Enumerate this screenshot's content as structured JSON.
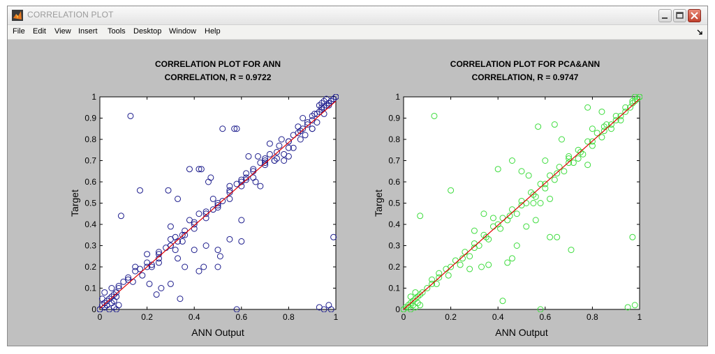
{
  "window": {
    "title": "CORRELATION PLOT",
    "menu": [
      "File",
      "Edit",
      "View",
      "Insert",
      "Tools",
      "Desktop",
      "Window",
      "Help"
    ],
    "controls": [
      "minimize-icon",
      "maximize-icon",
      "close-icon"
    ]
  },
  "chart_data": [
    {
      "type": "scatter",
      "title": "CORRELATION PLOT FOR ANN",
      "subtitle": "CORRELATION, R = 0.9722",
      "xlabel": "ANN Output",
      "ylabel": "Target",
      "xlim": [
        0,
        1
      ],
      "ylim": [
        0,
        1
      ],
      "xticks": [
        "0",
        "0.2",
        "0.4",
        "0.6",
        "0.8",
        "1"
      ],
      "yticks": [
        "0",
        "0.1",
        "0.2",
        "0.3",
        "0.4",
        "0.5",
        "0.6",
        "0.7",
        "0.8",
        "0.9",
        "1"
      ],
      "grid": false,
      "marker_color": "#1c1c8c",
      "series": [
        {
          "marker": "circle",
          "x": [
            0.0,
            0.01,
            0.02,
            0.03,
            0.04,
            0.05,
            0.06,
            0.07,
            0.05,
            0.08,
            0.1,
            0.12,
            0.15,
            0.2,
            0.25,
            0.3,
            0.35,
            0.4,
            0.45,
            0.5,
            0.55,
            0.6,
            0.65,
            0.7,
            0.75,
            0.8,
            0.85,
            0.88,
            0.9,
            0.92,
            0.94,
            0.96,
            0.97,
            0.98,
            0.99,
            1.0,
            0.0,
            0.02,
            0.01,
            0.03,
            0.04,
            0.06,
            0.07,
            0.08,
            0.05,
            0.06,
            0.02,
            0.07,
            0.12,
            0.08,
            0.17,
            0.14,
            0.2,
            0.22,
            0.25,
            0.28,
            0.3,
            0.33,
            0.36,
            0.32,
            0.4,
            0.45,
            0.52,
            0.5,
            0.48,
            0.55,
            0.58,
            0.6,
            0.62,
            0.65,
            0.68,
            0.7,
            0.72,
            0.76,
            0.8,
            0.84,
            0.86,
            0.88,
            0.9,
            0.91,
            0.93,
            0.95,
            0.97,
            0.18,
            0.22,
            0.25,
            0.3,
            0.35,
            0.4,
            0.45,
            0.5,
            0.55,
            0.6,
            0.65,
            0.7,
            0.75,
            0.8,
            0.85,
            0.9,
            0.95,
            0.15,
            0.2,
            0.25,
            0.32,
            0.38,
            0.42,
            0.48,
            0.55,
            0.62,
            0.66,
            0.74,
            0.78,
            0.82,
            0.87,
            0.13,
            0.09,
            0.17,
            0.29,
            0.33,
            0.34,
            0.5,
            0.51,
            0.52,
            0.57,
            0.58,
            0.43,
            0.42,
            0.46,
            0.47,
            0.62,
            0.63,
            0.67,
            0.7,
            0.74,
            0.78,
            0.8,
            0.84,
            0.86,
            0.9,
            0.92,
            0.94,
            0.33,
            0.36,
            0.4,
            0.45,
            0.3,
            0.26,
            0.24,
            0.21,
            0.36,
            0.42,
            0.44,
            0.5,
            0.55,
            0.6,
            0.58,
            0.93,
            0.95,
            0.98,
            0.99,
            0.97,
            0.3,
            0.6,
            0.38,
            0.68,
            0.72,
            0.77,
            0.82,
            0.97,
            0.98,
            0.99,
            1.0,
            0.96,
            0.95,
            0.94,
            0.93
          ],
          "y": [
            0.0,
            0.02,
            0.03,
            0.04,
            0.05,
            0.06,
            0.07,
            0.08,
            0.1,
            0.11,
            0.13,
            0.15,
            0.18,
            0.22,
            0.26,
            0.3,
            0.35,
            0.4,
            0.45,
            0.5,
            0.55,
            0.6,
            0.65,
            0.7,
            0.74,
            0.79,
            0.84,
            0.87,
            0.89,
            0.92,
            0.94,
            0.96,
            0.97,
            0.98,
            0.99,
            1.0,
            0.0,
            0.01,
            0.05,
            0.02,
            0.0,
            0.01,
            0.0,
            0.02,
            0.03,
            0.04,
            0.08,
            0.06,
            0.14,
            0.1,
            0.19,
            0.13,
            0.2,
            0.21,
            0.24,
            0.29,
            0.3,
            0.32,
            0.37,
            0.34,
            0.41,
            0.46,
            0.51,
            0.49,
            0.47,
            0.56,
            0.59,
            0.61,
            0.62,
            0.66,
            0.69,
            0.71,
            0.73,
            0.77,
            0.79,
            0.83,
            0.85,
            0.88,
            0.91,
            0.92,
            0.93,
            0.95,
            0.96,
            0.16,
            0.2,
            0.27,
            0.33,
            0.32,
            0.38,
            0.43,
            0.48,
            0.52,
            0.58,
            0.62,
            0.68,
            0.71,
            0.76,
            0.8,
            0.85,
            0.92,
            0.2,
            0.26,
            0.22,
            0.28,
            0.42,
            0.45,
            0.52,
            0.58,
            0.64,
            0.6,
            0.7,
            0.73,
            0.76,
            0.82,
            0.91,
            0.44,
            0.56,
            0.56,
            0.52,
            0.05,
            0.2,
            0.25,
            0.85,
            0.85,
            0.85,
            0.66,
            0.66,
            0.6,
            0.62,
            0.61,
            0.72,
            0.72,
            0.69,
            0.7,
            0.7,
            0.72,
            0.86,
            0.9,
            0.85,
            0.88,
            0.95,
            0.24,
            0.35,
            0.28,
            0.3,
            0.12,
            0.1,
            0.07,
            0.12,
            0.2,
            0.18,
            0.2,
            0.28,
            0.33,
            0.32,
            0.0,
            0.01,
            0.0,
            0.0,
            0.34,
            0.02,
            0.39,
            0.42,
            0.66,
            0.58,
            0.78,
            0.8,
            0.82,
            0.97,
            0.98,
            0.99,
            1.0,
            0.99,
            0.98,
            0.97,
            0.96
          ]
        }
      ],
      "fit_line": {
        "x": [
          0,
          1
        ],
        "y": [
          0.005,
          0.98
        ],
        "color": "#e00000"
      }
    },
    {
      "type": "scatter",
      "title": "CORRELATION PLOT FOR PCA&ANN",
      "subtitle": "CORRELATION, R = 0.9747",
      "xlabel": "ANN Output",
      "ylabel": "Target",
      "xlim": [
        0,
        1
      ],
      "ylim": [
        0,
        1
      ],
      "xticks": [
        "0",
        "0.2",
        "0.4",
        "0.6",
        "0.8",
        "1"
      ],
      "yticks": [
        "0",
        "0.1",
        "0.2",
        "0.3",
        "0.4",
        "0.5",
        "0.6",
        "0.7",
        "0.8",
        "0.9",
        "1"
      ],
      "grid": false,
      "marker_color": "#3cdc3c",
      "series": [
        {
          "marker": "circle",
          "x": [
            0.0,
            0.01,
            0.02,
            0.03,
            0.04,
            0.05,
            0.06,
            0.07,
            0.08,
            0.1,
            0.12,
            0.15,
            0.2,
            0.25,
            0.3,
            0.35,
            0.4,
            0.45,
            0.5,
            0.55,
            0.6,
            0.65,
            0.7,
            0.75,
            0.8,
            0.85,
            0.88,
            0.9,
            0.92,
            0.94,
            0.96,
            0.97,
            0.98,
            0.99,
            1.0,
            0.0,
            0.02,
            0.03,
            0.04,
            0.05,
            0.06,
            0.07,
            0.03,
            0.05,
            0.12,
            0.15,
            0.18,
            0.22,
            0.26,
            0.3,
            0.34,
            0.38,
            0.42,
            0.46,
            0.5,
            0.54,
            0.58,
            0.62,
            0.66,
            0.7,
            0.74,
            0.78,
            0.82,
            0.86,
            0.9,
            0.94,
            0.14,
            0.19,
            0.24,
            0.28,
            0.32,
            0.36,
            0.41,
            0.44,
            0.48,
            0.52,
            0.56,
            0.6,
            0.64,
            0.68,
            0.72,
            0.76,
            0.8,
            0.84,
            0.88,
            0.92,
            0.13,
            0.07,
            0.2,
            0.3,
            0.34,
            0.38,
            0.4,
            0.46,
            0.5,
            0.53,
            0.6,
            0.62,
            0.67,
            0.7,
            0.74,
            0.78,
            0.8,
            0.85,
            0.28,
            0.33,
            0.36,
            0.44,
            0.48,
            0.52,
            0.56,
            0.42,
            0.46,
            0.55,
            0.62,
            0.58,
            0.65,
            0.71,
            0.97,
            0.98,
            0.95,
            0.57,
            0.64,
            0.84,
            0.78,
            0.58,
            0.97,
            0.99,
            1.0,
            0.98
          ],
          "y": [
            0.0,
            0.01,
            0.02,
            0.03,
            0.04,
            0.05,
            0.06,
            0.07,
            0.08,
            0.1,
            0.12,
            0.15,
            0.2,
            0.24,
            0.29,
            0.34,
            0.4,
            0.44,
            0.49,
            0.54,
            0.59,
            0.64,
            0.69,
            0.74,
            0.79,
            0.84,
            0.87,
            0.89,
            0.91,
            0.93,
            0.95,
            0.97,
            0.98,
            0.99,
            1.0,
            0.0,
            0.01,
            0.0,
            0.02,
            0.01,
            0.03,
            0.02,
            0.06,
            0.08,
            0.14,
            0.17,
            0.19,
            0.23,
            0.27,
            0.31,
            0.35,
            0.39,
            0.43,
            0.47,
            0.51,
            0.55,
            0.59,
            0.63,
            0.67,
            0.71,
            0.75,
            0.79,
            0.83,
            0.87,
            0.91,
            0.95,
            0.12,
            0.16,
            0.21,
            0.25,
            0.3,
            0.33,
            0.38,
            0.42,
            0.45,
            0.5,
            0.53,
            0.57,
            0.61,
            0.65,
            0.69,
            0.73,
            0.77,
            0.81,
            0.85,
            0.89,
            0.91,
            0.44,
            0.56,
            0.37,
            0.45,
            0.43,
            0.66,
            0.7,
            0.65,
            0.63,
            0.7,
            0.52,
            0.8,
            0.72,
            0.71,
            0.68,
            0.85,
            0.86,
            0.19,
            0.2,
            0.21,
            0.22,
            0.3,
            0.39,
            0.42,
            0.04,
            0.24,
            0.5,
            0.34,
            0.5,
            0.34,
            0.28,
            0.34,
            0.02,
            0.01,
            0.86,
            0.87,
            0.93,
            0.95,
            0.0,
            0.98,
            0.99,
            1.0,
            1.0
          ],
          "note": ""
        }
      ],
      "fit_line": {
        "x": [
          0,
          1
        ],
        "y": [
          0.0,
          0.99
        ],
        "color": "#e00000"
      }
    }
  ]
}
